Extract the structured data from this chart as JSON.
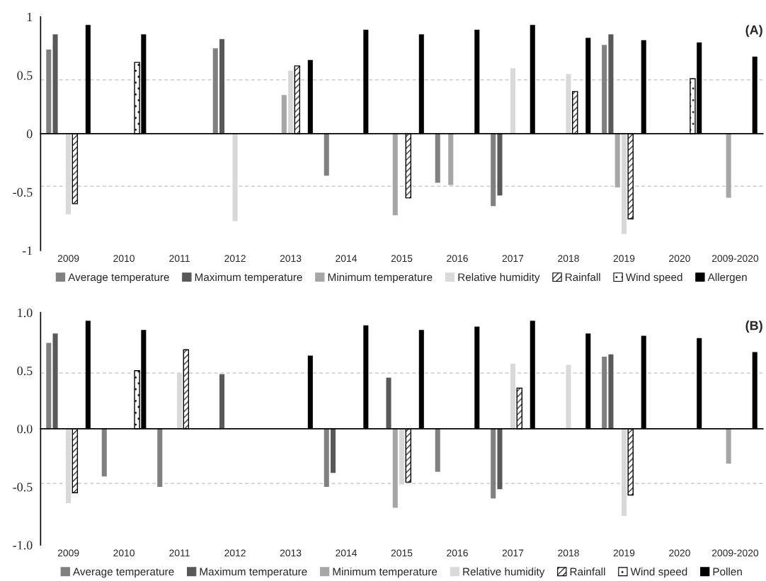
{
  "chart_data": [
    {
      "type": "bar",
      "title": "(A)",
      "categories": [
        "2009",
        "2010",
        "2011",
        "2012",
        "2013",
        "2014",
        "2015",
        "2016",
        "2017",
        "2018",
        "2019",
        "2020",
        "2009-2020"
      ],
      "series": [
        {
          "name": "Average temperature",
          "color": "#808080",
          "values": [
            0.72,
            null,
            null,
            0.73,
            null,
            -0.36,
            null,
            -0.42,
            -0.62,
            null,
            0.76,
            null,
            null
          ]
        },
        {
          "name": "Maximum temperature",
          "color": "#595959",
          "values": [
            0.85,
            null,
            null,
            0.81,
            null,
            null,
            null,
            null,
            -0.53,
            null,
            0.85,
            null,
            null
          ]
        },
        {
          "name": "Minimum temperature",
          "color": "#a6a6a6",
          "values": [
            null,
            null,
            null,
            null,
            0.33,
            null,
            -0.7,
            -0.44,
            null,
            null,
            -0.46,
            null,
            -0.55
          ]
        },
        {
          "name": "Relative humidity",
          "color": "#d9d9d9",
          "values": [
            -0.69,
            null,
            null,
            -0.75,
            0.54,
            null,
            null,
            null,
            0.56,
            0.51,
            -0.86,
            null,
            null
          ]
        },
        {
          "name": "Rainfall",
          "color": "#000000",
          "line_style": "dashed",
          "values": [
            -0.6,
            null,
            null,
            null,
            0.58,
            null,
            -0.55,
            null,
            null,
            0.36,
            -0.73,
            null,
            null
          ]
        },
        {
          "name": "Wind speed",
          "color": "#000000",
          "line_style": "dotted",
          "values": [
            null,
            0.61,
            null,
            null,
            null,
            null,
            null,
            null,
            null,
            null,
            null,
            0.47,
            null
          ]
        },
        {
          "name": "Allergen",
          "color": "#000000",
          "values": [
            0.93,
            0.85,
            null,
            null,
            0.63,
            0.89,
            0.85,
            0.89,
            0.93,
            0.82,
            0.8,
            0.78,
            0.66
          ]
        }
      ],
      "ylim": [
        -1,
        1
      ],
      "yticks": [
        -1,
        -0.5,
        0,
        0.5,
        1
      ],
      "ref_lines": [
        {
          "axis": "y",
          "value": 0.46,
          "color": "#bfbfbf",
          "line_style": "dashed"
        },
        {
          "axis": "y",
          "value": -0.45,
          "color": "#bfbfbf",
          "line_style": "dashed"
        }
      ],
      "legend": "bottom"
    },
    {
      "type": "bar",
      "title": "(B)",
      "categories": [
        "2009",
        "2010",
        "2011",
        "2012",
        "2013",
        "2014",
        "2015",
        "2016",
        "2017",
        "2018",
        "2019",
        "2020",
        "2009-2020"
      ],
      "series": [
        {
          "name": "Average temperature",
          "color": "#808080",
          "values": [
            0.74,
            -0.41,
            -0.5,
            null,
            null,
            -0.5,
            null,
            -0.37,
            -0.6,
            null,
            0.62,
            null,
            null
          ]
        },
        {
          "name": "Maximum temperature",
          "color": "#595959",
          "values": [
            0.82,
            null,
            null,
            0.47,
            null,
            -0.38,
            0.44,
            null,
            -0.52,
            null,
            0.64,
            null,
            null
          ]
        },
        {
          "name": "Minimum temperature",
          "color": "#a6a6a6",
          "values": [
            null,
            null,
            null,
            null,
            null,
            null,
            -0.68,
            null,
            null,
            null,
            null,
            null,
            -0.3
          ]
        },
        {
          "name": "Relative humidity",
          "color": "#d9d9d9",
          "values": [
            -0.64,
            null,
            0.48,
            null,
            null,
            null,
            -0.48,
            null,
            0.56,
            0.55,
            -0.75,
            null,
            null
          ]
        },
        {
          "name": "Rainfall",
          "color": "#000000",
          "line_style": "dashed",
          "values": [
            -0.55,
            null,
            0.68,
            null,
            null,
            null,
            -0.46,
            null,
            0.35,
            null,
            -0.57,
            null,
            null
          ]
        },
        {
          "name": "Wind speed",
          "color": "#000000",
          "line_style": "dotted",
          "values": [
            null,
            0.5,
            null,
            null,
            null,
            null,
            null,
            null,
            null,
            null,
            null,
            null,
            null
          ]
        },
        {
          "name": "Pollen",
          "color": "#000000",
          "values": [
            0.93,
            0.85,
            null,
            null,
            0.63,
            0.89,
            0.85,
            0.88,
            0.93,
            0.82,
            0.8,
            0.78,
            0.66
          ]
        }
      ],
      "ylim": [
        -1,
        1
      ],
      "yticks": [
        {
          "value": -1,
          "label": "-1.0"
        },
        {
          "value": -0.5,
          "label": "-0.5"
        },
        {
          "value": 0,
          "label": "0.0"
        },
        {
          "value": 0.5,
          "label": "0.5"
        },
        {
          "value": 1,
          "label": "1.0"
        }
      ],
      "ref_lines": [
        {
          "axis": "y",
          "value": 0.48,
          "color": "#bfbfbf",
          "line_style": "dashed"
        },
        {
          "axis": "y",
          "value": -0.47,
          "color": "#bfbfbf",
          "line_style": "dashed"
        }
      ],
      "legend": "bottom"
    }
  ]
}
